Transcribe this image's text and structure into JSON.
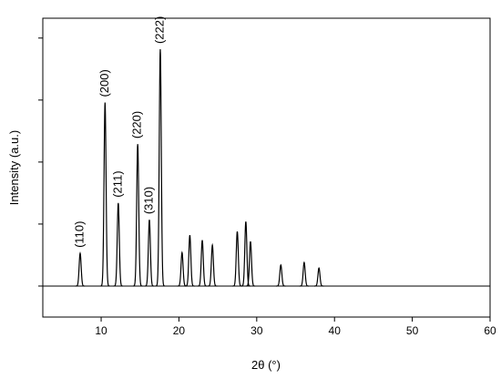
{
  "chart_data": {
    "type": "peaks",
    "x_label": "2θ (°)",
    "y_label": "Intensity (a.u.)",
    "x": [
      7.3,
      10.5,
      12.2,
      14.7,
      16.2,
      17.6,
      20.4,
      21.4,
      23.0,
      24.3,
      27.5,
      28.6,
      29.2,
      33.1,
      36.1,
      38.0
    ],
    "values": [
      0.53,
      2.96,
      1.34,
      2.29,
      1.07,
      3.82,
      0.54,
      0.82,
      0.74,
      0.66,
      0.88,
      1.04,
      0.72,
      0.34,
      0.38,
      0.29
    ],
    "peak_labels": [
      "(110)",
      "(200)",
      "(211)",
      "(220)",
      "(310)",
      "(222)",
      null,
      null,
      null,
      null,
      null,
      null,
      null,
      null,
      null,
      null
    ],
    "color": "#000000",
    "xlim": [
      2.5,
      60
    ],
    "xticks": [
      10,
      20,
      30,
      40,
      50,
      60
    ],
    "ylim": [
      -0.5,
      4.32
    ],
    "yticks": [
      0,
      1,
      2,
      3,
      4
    ]
  }
}
